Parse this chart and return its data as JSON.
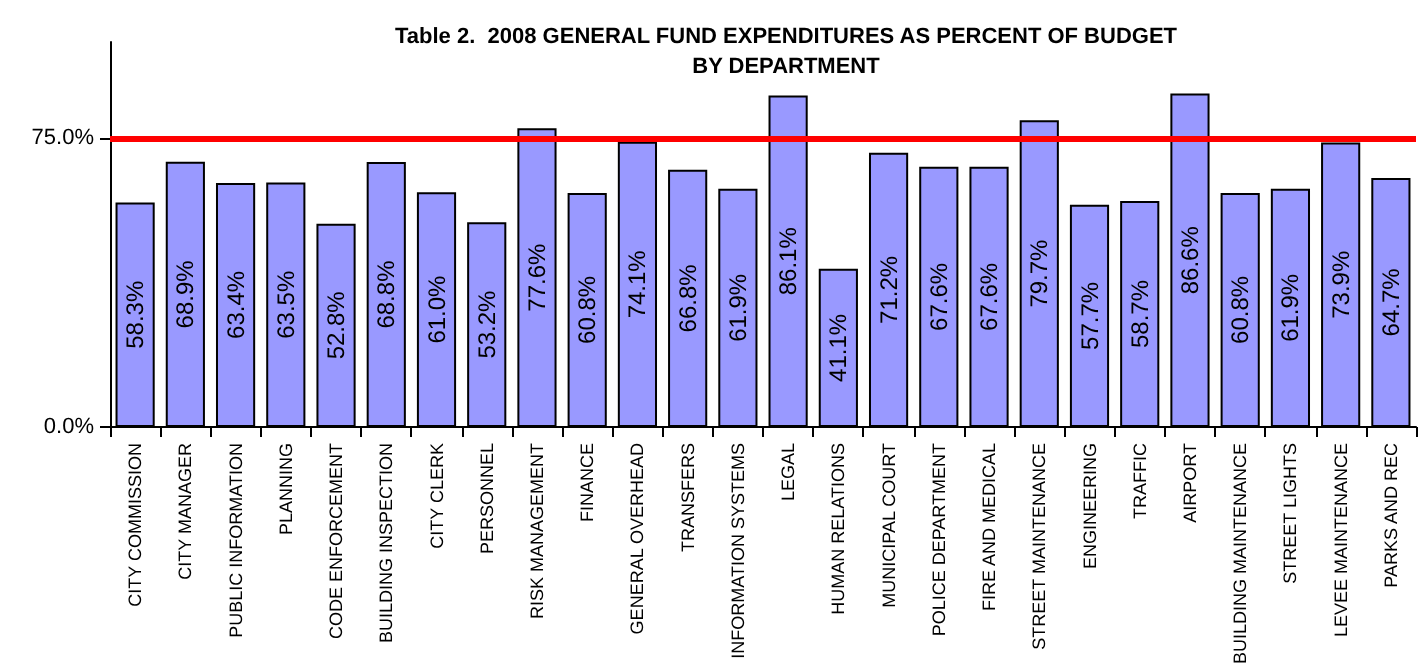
{
  "chart_data": {
    "type": "bar",
    "title": "Table 2.  2008 GENERAL FUND EXPENDITURES AS PERCENT OF BUDGET\nBY DEPARTMENT",
    "categories": [
      "CITY COMMISSION",
      "CITY MANAGER",
      "PUBLIC INFORMATION",
      "PLANNING",
      "CODE ENFORCEMENT",
      "BUILDING INSPECTION",
      "CITY CLERK",
      "PERSONNEL",
      "RISK MANAGEMENT",
      "FINANCE",
      "GENERAL OVERHEAD",
      "TRANSFERS",
      "INFORMATION SYSTEMS",
      "LEGAL",
      "HUMAN RELATIONS",
      "MUNICIPAL COURT",
      "POLICE DEPARTMENT",
      "FIRE AND MEDICAL",
      "STREET MAINTENANCE",
      "ENGINEERING",
      "TRAFFIC",
      "AIRPORT",
      "BUILDING MAINTENANCE",
      "STREET LIGHTS",
      "LEVEE MAINTENANCE",
      "PARKS AND REC"
    ],
    "values": [
      58.3,
      68.9,
      63.4,
      63.5,
      52.8,
      68.8,
      61.0,
      53.2,
      77.6,
      60.8,
      74.1,
      66.8,
      61.9,
      86.1,
      41.1,
      71.2,
      67.6,
      67.6,
      79.7,
      57.7,
      58.7,
      86.6,
      60.8,
      61.9,
      73.9,
      64.7
    ],
    "value_labels": [
      "58.3%",
      "68.9%",
      "63.4%",
      "63.5%",
      "52.8%",
      "68.8%",
      "61.0%",
      "53.2%",
      "77.6%",
      "60.8%",
      "74.1%",
      "66.8%",
      "61.9%",
      "86.1%",
      "41.1%",
      "71.2%",
      "67.6%",
      "67.6%",
      "79.7%",
      "57.7%",
      "58.7%",
      "86.6%",
      "60.8%",
      "61.9%",
      "73.9%",
      "64.7%"
    ],
    "color": "#9999ff",
    "ylim": [
      0,
      100
    ],
    "yticks": [
      {
        "value": 0,
        "label": "0.0%"
      },
      {
        "value": 75,
        "label": "75.0%"
      }
    ],
    "ref_lines": [
      {
        "axis": "y",
        "value": 75,
        "color": "#ff0000",
        "line_style": "solid"
      }
    ]
  }
}
